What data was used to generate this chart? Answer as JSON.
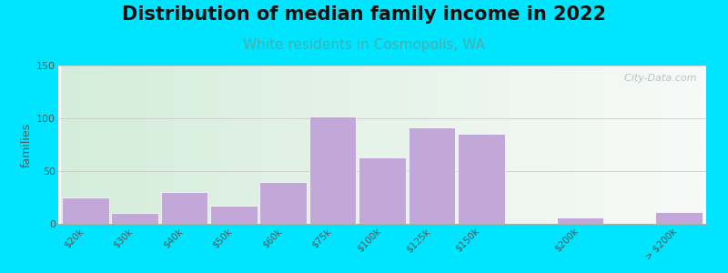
{
  "title": "Distribution of median family income in 2022",
  "subtitle": "White residents in Cosmopolis, WA",
  "ylabel": "families",
  "categories": [
    "$20k",
    "$30k",
    "$40k",
    "$50k",
    "$60k",
    "$75k",
    "$100k",
    "$125k",
    "$150k",
    "$200k",
    "> $200k"
  ],
  "values": [
    25,
    10,
    30,
    17,
    40,
    102,
    63,
    91,
    85,
    6,
    11
  ],
  "bar_color": "#c2a8d8",
  "bar_edge_color": "#ffffff",
  "background_outer": "#00e5ff",
  "background_chart_topleft": "#d4edda",
  "background_chart_bottomright": "#f0f5ee",
  "background_chart_right": "#e8f0ee",
  "ylim": [
    0,
    150
  ],
  "yticks": [
    0,
    50,
    100,
    150
  ],
  "title_fontsize": 15,
  "subtitle_fontsize": 11,
  "subtitle_color": "#4aadad",
  "ylabel_fontsize": 9,
  "watermark_text": "  City-Data.com",
  "watermark_color": "#aabbc0",
  "bar_positions": [
    0,
    1,
    2,
    3,
    4,
    5,
    6,
    7,
    8,
    10,
    12
  ],
  "bar_width": 0.95
}
